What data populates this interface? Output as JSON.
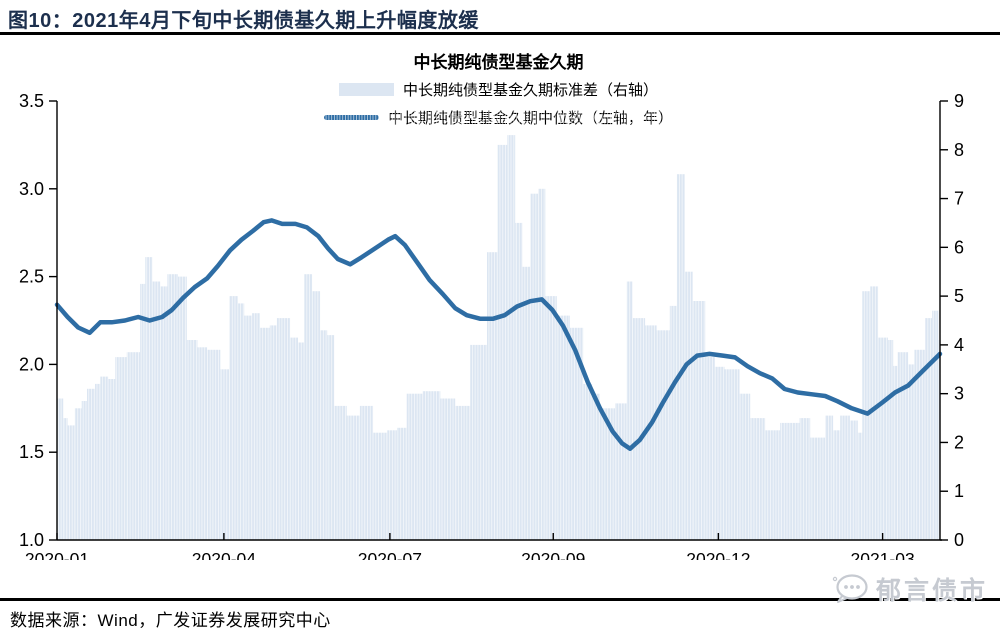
{
  "page": {
    "figure_title": "图10：2021年4月下旬中长期债基久期上升幅度放缓",
    "source_note": "数据来源：Wind，广发证券发展研究中心",
    "watermark": "郁言债市"
  },
  "chart_data": {
    "type": "bar+line (dual axis)",
    "title": "中长期纯债型基金久期",
    "colors": {
      "bar": "#dce6f2",
      "line": "#2e6da4",
      "axis": "#000000"
    },
    "legend": [
      {
        "label": "中长期纯债型基金久期标准差（右轴）",
        "marker": "bar"
      },
      {
        "label": "中长期纯债型基金久期中位数（左轴，年）",
        "marker": "line"
      }
    ],
    "x_axis": {
      "tick_labels": [
        "2020-01",
        "2020-04",
        "2020-07",
        "2020-09",
        "2020-12",
        "2021-03"
      ],
      "tick_positions": [
        0,
        0.189,
        0.377,
        0.562,
        0.749,
        0.935
      ]
    },
    "left_axis": {
      "min": 1.0,
      "max": 3.5,
      "tick_labels": [
        "3.5",
        "3.0",
        "2.5",
        "2.0",
        "1.5",
        "1.0"
      ]
    },
    "right_axis": {
      "min": 0,
      "max": 9,
      "tick_labels": [
        "9",
        "8",
        "7",
        "6",
        "5",
        "4",
        "3",
        "2",
        "1",
        "0"
      ]
    },
    "series": [
      {
        "name": "中长期纯债型基金久期标准差（右轴）",
        "axis": "right",
        "type": "bar",
        "points": [
          [
            0.0,
            2.9
          ],
          [
            0.007,
            2.5
          ],
          [
            0.012,
            2.35
          ],
          [
            0.02,
            2.7
          ],
          [
            0.028,
            2.85
          ],
          [
            0.034,
            3.1
          ],
          [
            0.043,
            3.2
          ],
          [
            0.049,
            3.35
          ],
          [
            0.058,
            3.3
          ],
          [
            0.066,
            3.75
          ],
          [
            0.079,
            3.85
          ],
          [
            0.094,
            5.25
          ],
          [
            0.1,
            5.8
          ],
          [
            0.108,
            5.3
          ],
          [
            0.117,
            5.2
          ],
          [
            0.125,
            5.45
          ],
          [
            0.137,
            5.4
          ],
          [
            0.147,
            4.1
          ],
          [
            0.159,
            3.95
          ],
          [
            0.17,
            3.9
          ],
          [
            0.185,
            3.5
          ],
          [
            0.195,
            5.0
          ],
          [
            0.205,
            4.85
          ],
          [
            0.212,
            4.6
          ],
          [
            0.221,
            4.65
          ],
          [
            0.23,
            4.35
          ],
          [
            0.241,
            4.4
          ],
          [
            0.249,
            4.55
          ],
          [
            0.264,
            4.15
          ],
          [
            0.273,
            4.05
          ],
          [
            0.28,
            5.45
          ],
          [
            0.289,
            5.1
          ],
          [
            0.298,
            4.3
          ],
          [
            0.306,
            4.2
          ],
          [
            0.314,
            2.75
          ],
          [
            0.328,
            2.55
          ],
          [
            0.343,
            2.75
          ],
          [
            0.358,
            2.2
          ],
          [
            0.374,
            2.25
          ],
          [
            0.385,
            2.3
          ],
          [
            0.396,
            3.0
          ],
          [
            0.414,
            3.05
          ],
          [
            0.434,
            2.9
          ],
          [
            0.451,
            2.75
          ],
          [
            0.468,
            4.0
          ],
          [
            0.487,
            5.9
          ],
          [
            0.499,
            8.1
          ],
          [
            0.51,
            8.3
          ],
          [
            0.519,
            6.5
          ],
          [
            0.527,
            5.6
          ],
          [
            0.536,
            7.1
          ],
          [
            0.545,
            7.2
          ],
          [
            0.553,
            5.0
          ],
          [
            0.566,
            4.6
          ],
          [
            0.581,
            4.35
          ],
          [
            0.596,
            3.2
          ],
          [
            0.606,
            3.0
          ],
          [
            0.615,
            2.7
          ],
          [
            0.632,
            2.8
          ],
          [
            0.645,
            5.3
          ],
          [
            0.652,
            4.55
          ],
          [
            0.666,
            4.4
          ],
          [
            0.679,
            4.3
          ],
          [
            0.694,
            4.8
          ],
          [
            0.702,
            7.5
          ],
          [
            0.711,
            5.5
          ],
          [
            0.72,
            4.9
          ],
          [
            0.734,
            3.75
          ],
          [
            0.745,
            3.55
          ],
          [
            0.756,
            3.5
          ],
          [
            0.773,
            3.0
          ],
          [
            0.785,
            2.5
          ],
          [
            0.802,
            2.25
          ],
          [
            0.819,
            2.4
          ],
          [
            0.841,
            2.5
          ],
          [
            0.853,
            2.1
          ],
          [
            0.87,
            2.55
          ],
          [
            0.879,
            2.25
          ],
          [
            0.887,
            2.55
          ],
          [
            0.898,
            2.45
          ],
          [
            0.907,
            2.2
          ],
          [
            0.912,
            5.1
          ],
          [
            0.921,
            5.2
          ],
          [
            0.93,
            4.15
          ],
          [
            0.941,
            4.1
          ],
          [
            0.947,
            3.57
          ],
          [
            0.952,
            3.85
          ],
          [
            0.964,
            3.6
          ],
          [
            0.971,
            3.9
          ],
          [
            0.983,
            4.55
          ],
          [
            0.991,
            4.7
          ],
          [
            0.998,
            4.1
          ]
        ]
      },
      {
        "name": "中长期纯债型基金久期中位数（左轴，年）",
        "axis": "left",
        "type": "line",
        "points": [
          [
            0.0,
            2.34
          ],
          [
            0.012,
            2.27
          ],
          [
            0.024,
            2.21
          ],
          [
            0.037,
            2.18
          ],
          [
            0.049,
            2.24
          ],
          [
            0.062,
            2.24
          ],
          [
            0.077,
            2.25
          ],
          [
            0.092,
            2.27
          ],
          [
            0.105,
            2.25
          ],
          [
            0.119,
            2.27
          ],
          [
            0.13,
            2.31
          ],
          [
            0.143,
            2.38
          ],
          [
            0.156,
            2.44
          ],
          [
            0.17,
            2.49
          ],
          [
            0.182,
            2.56
          ],
          [
            0.196,
            2.65
          ],
          [
            0.209,
            2.71
          ],
          [
            0.222,
            2.76
          ],
          [
            0.234,
            2.81
          ],
          [
            0.243,
            2.82
          ],
          [
            0.255,
            2.8
          ],
          [
            0.27,
            2.8
          ],
          [
            0.283,
            2.78
          ],
          [
            0.296,
            2.73
          ],
          [
            0.307,
            2.66
          ],
          [
            0.318,
            2.6
          ],
          [
            0.332,
            2.57
          ],
          [
            0.345,
            2.61
          ],
          [
            0.36,
            2.66
          ],
          [
            0.375,
            2.71
          ],
          [
            0.383,
            2.73
          ],
          [
            0.394,
            2.68
          ],
          [
            0.408,
            2.58
          ],
          [
            0.422,
            2.48
          ],
          [
            0.437,
            2.4
          ],
          [
            0.451,
            2.32
          ],
          [
            0.464,
            2.28
          ],
          [
            0.479,
            2.26
          ],
          [
            0.494,
            2.26
          ],
          [
            0.507,
            2.28
          ],
          [
            0.521,
            2.33
          ],
          [
            0.536,
            2.36
          ],
          [
            0.549,
            2.37
          ],
          [
            0.561,
            2.31
          ],
          [
            0.573,
            2.22
          ],
          [
            0.587,
            2.08
          ],
          [
            0.601,
            1.9
          ],
          [
            0.615,
            1.75
          ],
          [
            0.629,
            1.62
          ],
          [
            0.64,
            1.55
          ],
          [
            0.649,
            1.52
          ],
          [
            0.66,
            1.57
          ],
          [
            0.674,
            1.67
          ],
          [
            0.686,
            1.78
          ],
          [
            0.7,
            1.9
          ],
          [
            0.713,
            2.0
          ],
          [
            0.725,
            2.05
          ],
          [
            0.739,
            2.06
          ],
          [
            0.754,
            2.05
          ],
          [
            0.768,
            2.04
          ],
          [
            0.782,
            1.99
          ],
          [
            0.796,
            1.95
          ],
          [
            0.81,
            1.92
          ],
          [
            0.824,
            1.86
          ],
          [
            0.839,
            1.84
          ],
          [
            0.855,
            1.83
          ],
          [
            0.87,
            1.82
          ],
          [
            0.884,
            1.79
          ],
          [
            0.9,
            1.75
          ],
          [
            0.918,
            1.72
          ],
          [
            0.934,
            1.78
          ],
          [
            0.949,
            1.84
          ],
          [
            0.964,
            1.88
          ],
          [
            0.98,
            1.96
          ],
          [
            0.994,
            2.03
          ],
          [
            1.0,
            2.06
          ]
        ]
      }
    ]
  }
}
